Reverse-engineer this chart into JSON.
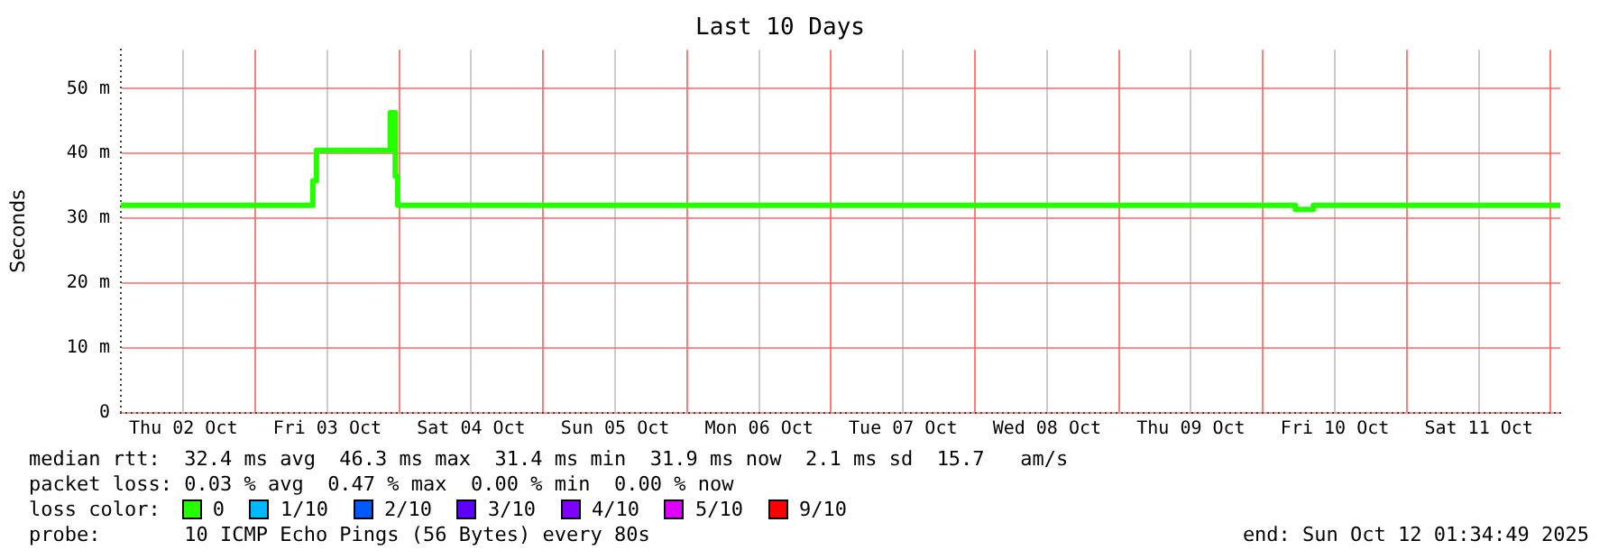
{
  "chart_data": {
    "type": "step",
    "title": "Last 10 Days",
    "ylabel": "Seconds",
    "x": [
      "2025-10-02T01:35",
      "2025-10-03T09:36",
      "2025-10-03T10:12",
      "2025-10-03T22:30",
      "2025-10-03T23:20",
      "2025-10-03T23:45",
      "2025-10-10T05:24",
      "2025-10-10T08:24",
      "2025-10-12T01:35"
    ],
    "series": [
      {
        "name": "0",
        "color": "#26ff00",
        "values": [
          32,
          35.8,
          40.5,
          46.3,
          36.5,
          32,
          31.4,
          32,
          32
        ]
      },
      {
        "name": "1/10",
        "color": "#00b8ff",
        "values": [
          null,
          null,
          null,
          null,
          null,
          null,
          null,
          null,
          null
        ]
      },
      {
        "name": "2/10",
        "color": "#0059ff",
        "values": [
          null,
          null,
          null,
          null,
          null,
          null,
          null,
          null,
          null
        ]
      },
      {
        "name": "3/10",
        "color": "#5e00ff",
        "values": [
          null,
          null,
          null,
          null,
          null,
          null,
          null,
          null,
          null
        ]
      },
      {
        "name": "4/10",
        "color": "#7e00ff",
        "values": [
          null,
          null,
          null,
          null,
          null,
          null,
          null,
          null,
          null
        ]
      },
      {
        "name": "5/10",
        "color": "#dd00ff",
        "values": [
          null,
          null,
          null,
          null,
          null,
          null,
          null,
          null,
          null
        ]
      },
      {
        "name": "9/10",
        "color": "#ff0000",
        "values": [
          null,
          null,
          null,
          null,
          null,
          null,
          null,
          null,
          null
        ]
      }
    ],
    "legend": "bottom",
    "legend_title": "loss color:",
    "xlim": [
      "2025-10-02T01:35",
      "2025-10-12T01:35"
    ],
    "xticks": [
      {
        "value": "2025-10-02T12:00",
        "label": "Thu 02 Oct"
      },
      {
        "value": "2025-10-03T00:00",
        "label": null
      },
      {
        "value": "2025-10-03T12:00",
        "label": "Fri 03 Oct"
      },
      {
        "value": "2025-10-04T00:00",
        "label": null
      },
      {
        "value": "2025-10-04T12:00",
        "label": "Sat 04 Oct"
      },
      {
        "value": "2025-10-05T00:00",
        "label": null
      },
      {
        "value": "2025-10-05T12:00",
        "label": "Sun 05 Oct"
      },
      {
        "value": "2025-10-06T00:00",
        "label": null
      },
      {
        "value": "2025-10-06T12:00",
        "label": "Mon 06 Oct"
      },
      {
        "value": "2025-10-07T00:00",
        "label": null
      },
      {
        "value": "2025-10-07T12:00",
        "label": "Tue 07 Oct"
      },
      {
        "value": "2025-10-08T00:00",
        "label": null
      },
      {
        "value": "2025-10-08T12:00",
        "label": "Wed 08 Oct"
      },
      {
        "value": "2025-10-09T00:00",
        "label": null
      },
      {
        "value": "2025-10-09T12:00",
        "label": "Thu 09 Oct"
      },
      {
        "value": "2025-10-10T00:00",
        "label": null
      },
      {
        "value": "2025-10-10T12:00",
        "label": "Fri 10 Oct"
      },
      {
        "value": "2025-10-11T00:00",
        "label": null
      },
      {
        "value": "2025-10-11T12:00",
        "label": "Sat 11 Oct"
      },
      {
        "value": "2025-10-12T00:00",
        "label": null
      }
    ],
    "ylim": [
      0,
      56
    ],
    "yticks": [
      {
        "value": 0,
        "label": "0"
      },
      {
        "value": 10,
        "label": "10 m"
      },
      {
        "value": 20,
        "label": "20 m"
      },
      {
        "value": 30,
        "label": "30 m"
      },
      {
        "value": 40,
        "label": "40 m"
      },
      {
        "value": 50,
        "label": "50 m"
      }
    ],
    "grid": true,
    "marker": "none",
    "annotations": [
      "median rtt:  32.4 ms avg  46.3 ms max  31.4 ms min  31.9 ms now  2.1 ms sd  15.7   am/s",
      "packet loss: 0.03 % avg  0.47 % max  0.00 % min  0.00 % now",
      "probe:       10 ICMP Echo Pings (56 Bytes) every 80s",
      "end: Sun Oct 12 01:34:49 2025"
    ]
  }
}
